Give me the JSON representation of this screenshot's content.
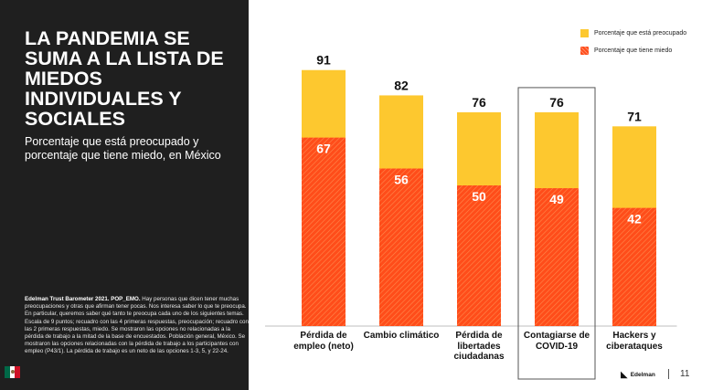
{
  "slide": {
    "title": "LA PANDEMIA SE SUMA A LA LISTA DE MIEDOS INDIVIDUALES Y SOCIALES",
    "subtitle": "Porcentaje que está preocupado y porcentaje que tiene miedo, en México",
    "source_bold": "Edelman Trust Barometer 2021. POP_EMO.",
    "source_text": " Hay personas que dicen tener muchas preocupaciones y otras que afirman tener pocas. Nos interesa saber lo que te preocupa. En particular, queremos saber qué tanto te preocupa cada uno de los siguientes temas. Escala de 9 puntos; recuadro con las 4 primeras respuestas, preocupación; recuadro con las 2 primeras respuestas, miedo. Se mostraron las opciones no relacionadas a la pérdida de trabajo a la mitad de la base de encuestados. Población general, México. Se mostraron las opciones relacionadas con la pérdida de trabajo a los participantes con empleo (P43/1). La pérdida de trabajo es un neto de las opciones 1-3, 5, y 22-24.",
    "flag_icon": "mexico-flag-icon",
    "brand": "Edelman",
    "page_number": "11"
  },
  "chart_data": {
    "type": "bar",
    "categories": [
      "Pérdida de empleo (neto)",
      "Cambio climático",
      "Pérdida de libertades ciudadanas",
      "Contagiarse de COVID-19",
      "Hackers y ciberataques"
    ],
    "series": [
      {
        "name": "Porcentaje que está preocupado",
        "color": "#fdc82f",
        "values": [
          91,
          82,
          76,
          76,
          71
        ]
      },
      {
        "name": "Porcentaje que tiene miedo",
        "color": "#ff4d1a",
        "values": [
          67,
          56,
          50,
          49,
          42
        ]
      }
    ],
    "highlighted_category": "Contagiarse de COVID-19",
    "ylim": [
      0,
      100
    ],
    "grid": false,
    "legend_position": "top-right"
  }
}
